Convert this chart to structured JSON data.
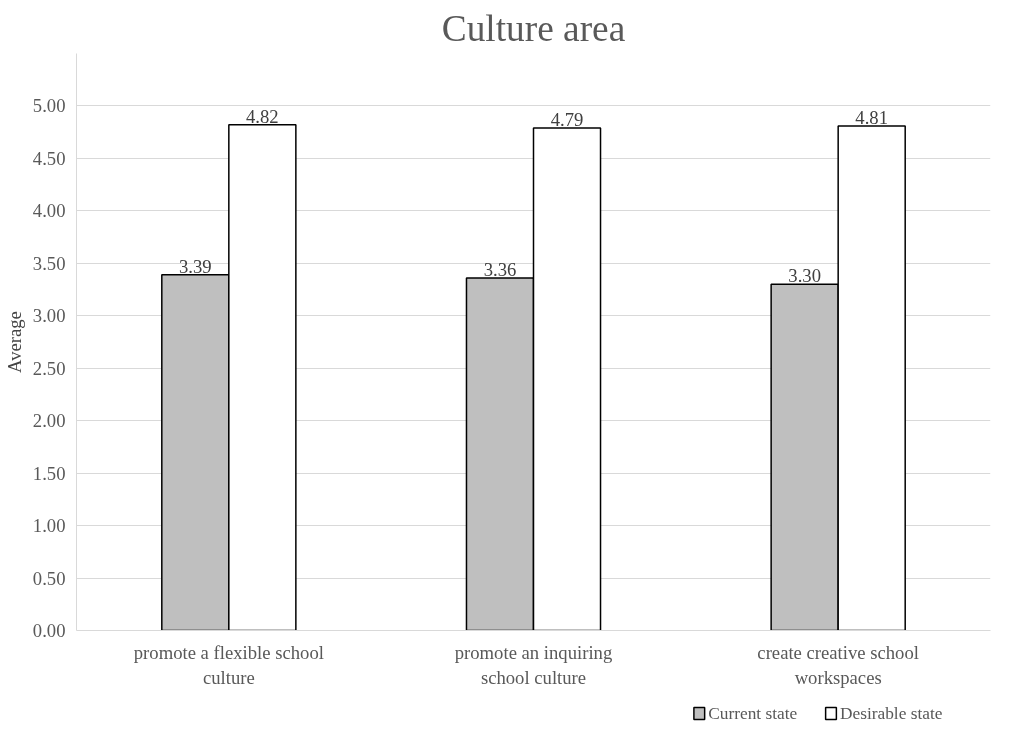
{
  "chart_data": {
    "type": "bar",
    "title": "Culture area",
    "ylabel": "Average",
    "categories": [
      "promote a flexible school culture",
      "promote an inquiring school culture",
      "create creative school workspaces"
    ],
    "series": [
      {
        "name": "Current state",
        "color": "#bfbfbf",
        "values": [
          3.39,
          3.36,
          3.3
        ],
        "value_labels": [
          "3.39",
          "3.36",
          "3.30"
        ]
      },
      {
        "name": "Desirable state",
        "color": "#ffffff",
        "values": [
          4.82,
          4.79,
          4.81
        ],
        "value_labels": [
          "4.82",
          "4.79",
          "4.81"
        ]
      }
    ],
    "ylim": [
      0,
      5.5
    ],
    "yticks": [
      {
        "value": 0,
        "label": "0.00"
      },
      {
        "value": 0.5,
        "label": "0.50"
      },
      {
        "value": 1,
        "label": "1.00"
      },
      {
        "value": 1.5,
        "label": "1.50"
      },
      {
        "value": 2,
        "label": "2.00"
      },
      {
        "value": 2.5,
        "label": "2.50"
      },
      {
        "value": 3,
        "label": "3.00"
      },
      {
        "value": 3.5,
        "label": "3.50"
      },
      {
        "value": 4,
        "label": "4.00"
      },
      {
        "value": 4.5,
        "label": "4.50"
      },
      {
        "value": 5,
        "label": "5.00"
      }
    ],
    "grid": "y",
    "legend": "bottom right"
  }
}
